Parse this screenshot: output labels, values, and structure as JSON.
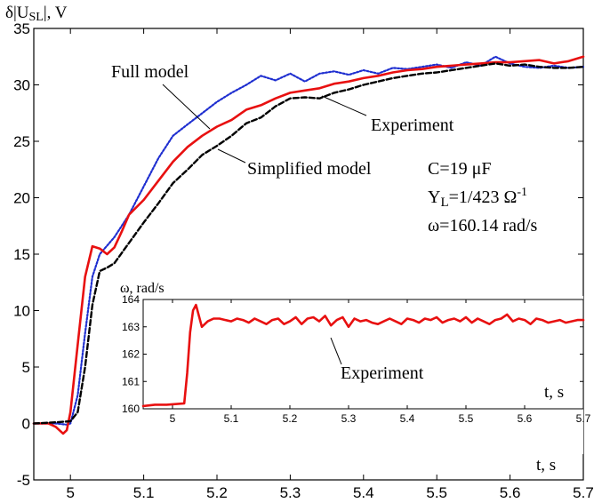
{
  "chart_data": [
    {
      "type": "line",
      "ylabel": "δ|U",
      "ylabel_sub": "SL",
      "ylabel_unit": "|, V",
      "xlabel": "t, s",
      "xlim": [
        4.95,
        5.7
      ],
      "ylim": [
        -5,
        35
      ],
      "x_ticks": [
        "5",
        "5.1",
        "5.2",
        "5.3",
        "5.4",
        "5.5",
        "5.6",
        "5.7"
      ],
      "y_ticks": [
        "-5",
        "0",
        "5",
        "10",
        "15",
        "20",
        "25",
        "30",
        "35"
      ],
      "grid": false,
      "annotations": {
        "full_model": "Full model",
        "experiment": "Experiment",
        "simplified_model": "Simplified model",
        "param_c": "C=19 μF",
        "param_y_main": "Y",
        "param_y_sub": "L",
        "param_y_value": "=1/423 Ω",
        "param_y_sup": "-1",
        "param_omega": "ω=160.14 rad/s"
      },
      "series": [
        {
          "role": "full-model",
          "color": "#1f2fd0",
          "style": "dotted",
          "x": [
            4.95,
            4.98,
            4.995,
            5.0,
            5.01,
            5.02,
            5.03,
            5.04,
            5.06,
            5.08,
            5.1,
            5.12,
            5.14,
            5.16,
            5.18,
            5.2,
            5.22,
            5.24,
            5.26,
            5.28,
            5.3,
            5.32,
            5.34,
            5.36,
            5.38,
            5.4,
            5.42,
            5.44,
            5.46,
            5.48,
            5.5,
            5.52,
            5.54,
            5.56,
            5.58,
            5.6,
            5.62,
            5.64,
            5.66,
            5.68,
            5.7
          ],
          "y": [
            0,
            0,
            -0.1,
            0,
            2.5,
            8,
            13,
            15,
            16.5,
            18.5,
            21,
            23.5,
            25.5,
            26.5,
            27.5,
            28.5,
            29.3,
            30,
            30.8,
            30.4,
            31,
            30.3,
            31,
            31.2,
            30.9,
            31.3,
            31,
            31.5,
            31.4,
            31.6,
            31.8,
            31.5,
            32,
            31.7,
            32.5,
            31.9,
            31.6,
            31.5,
            31.7,
            31.5,
            31.6
          ]
        },
        {
          "role": "experiment",
          "color": "#e81010",
          "style": "solid",
          "x": [
            4.95,
            4.97,
            4.98,
            4.99,
            4.995,
            5.0,
            5.01,
            5.02,
            5.03,
            5.04,
            5.05,
            5.06,
            5.07,
            5.08,
            5.1,
            5.12,
            5.14,
            5.16,
            5.18,
            5.2,
            5.22,
            5.24,
            5.26,
            5.28,
            5.3,
            5.32,
            5.34,
            5.36,
            5.38,
            5.4,
            5.42,
            5.44,
            5.46,
            5.48,
            5.5,
            5.52,
            5.54,
            5.56,
            5.58,
            5.6,
            5.62,
            5.64,
            5.66,
            5.68,
            5.7
          ],
          "y": [
            0,
            0,
            -0.3,
            -0.9,
            -0.6,
            1,
            7,
            13,
            15.7,
            15.5,
            15,
            15.6,
            17,
            18.5,
            19.8,
            21.5,
            23.2,
            24.5,
            25.5,
            26.3,
            26.9,
            27.8,
            28.2,
            28.8,
            29.3,
            29.5,
            29.7,
            30.1,
            30.3,
            30.6,
            30.8,
            31.1,
            31.3,
            31.4,
            31.6,
            31.7,
            31.8,
            31.9,
            32,
            32,
            32.1,
            32.2,
            31.9,
            32.1,
            32.5
          ]
        },
        {
          "role": "simplified-model",
          "color": "#000000",
          "style": "dashed",
          "x": [
            4.95,
            4.98,
            5.0,
            5.01,
            5.02,
            5.03,
            5.04,
            5.05,
            5.06,
            5.08,
            5.1,
            5.12,
            5.14,
            5.16,
            5.18,
            5.2,
            5.22,
            5.24,
            5.26,
            5.28,
            5.3,
            5.32,
            5.34,
            5.36,
            5.38,
            5.4,
            5.42,
            5.44,
            5.46,
            5.48,
            5.5,
            5.52,
            5.54,
            5.56,
            5.58,
            5.6,
            5.62,
            5.64,
            5.66,
            5.68,
            5.7
          ],
          "y": [
            0,
            0.1,
            0.2,
            1,
            5,
            10.5,
            13.5,
            13.8,
            14.2,
            16,
            17.8,
            19.5,
            21.3,
            22.5,
            23.8,
            24.6,
            25.5,
            26.6,
            27.1,
            28.1,
            28.8,
            28.9,
            28.8,
            29.3,
            29.6,
            30,
            30.3,
            30.6,
            30.8,
            31,
            31.1,
            31.3,
            31.5,
            31.7,
            31.9,
            31.7,
            31.8,
            31.6,
            31.5,
            31.5,
            31.6
          ]
        }
      ]
    },
    {
      "type": "line",
      "ylabel": "ω, rad/s",
      "xlabel": "t, s",
      "xlim": [
        4.95,
        5.7
      ],
      "ylim": [
        160,
        164
      ],
      "x_ticks": [
        "5",
        "5.1",
        "5.2",
        "5.3",
        "5.4",
        "5.5",
        "5.6",
        "5.7"
      ],
      "y_ticks": [
        "160",
        "161",
        "162",
        "163",
        "164"
      ],
      "grid": false,
      "annotations": {
        "experiment": "Experiment"
      },
      "series": [
        {
          "role": "experiment",
          "color": "#e81010",
          "style": "solid",
          "x": [
            4.95,
            4.97,
            4.99,
            5.02,
            5.025,
            5.03,
            5.035,
            5.04,
            5.045,
            5.05,
            5.06,
            5.07,
            5.08,
            5.09,
            5.1,
            5.11,
            5.12,
            5.13,
            5.14,
            5.15,
            5.16,
            5.17,
            5.18,
            5.19,
            5.2,
            5.21,
            5.22,
            5.23,
            5.24,
            5.25,
            5.26,
            5.27,
            5.28,
            5.29,
            5.3,
            5.31,
            5.32,
            5.33,
            5.34,
            5.35,
            5.36,
            5.37,
            5.38,
            5.39,
            5.4,
            5.41,
            5.42,
            5.43,
            5.44,
            5.45,
            5.46,
            5.47,
            5.48,
            5.49,
            5.5,
            5.51,
            5.52,
            5.53,
            5.54,
            5.55,
            5.56,
            5.57,
            5.58,
            5.59,
            5.6,
            5.61,
            5.62,
            5.63,
            5.64,
            5.65,
            5.66,
            5.67,
            5.68,
            5.69,
            5.7
          ],
          "y": [
            160.1,
            160.15,
            160.15,
            160.2,
            161.3,
            162.8,
            163.6,
            163.8,
            163.4,
            163.0,
            163.2,
            163.3,
            163.3,
            163.25,
            163.2,
            163.3,
            163.25,
            163.15,
            163.3,
            163.2,
            163.1,
            163.25,
            163.3,
            163.1,
            163.2,
            163.35,
            163.1,
            163.3,
            163.35,
            163.2,
            163.4,
            163.05,
            163.25,
            163.35,
            163.0,
            163.3,
            163.2,
            163.25,
            163.15,
            163.1,
            163.2,
            163.3,
            163.2,
            163.1,
            163.3,
            163.25,
            163.15,
            163.3,
            163.25,
            163.35,
            163.15,
            163.25,
            163.3,
            163.2,
            163.35,
            163.15,
            163.3,
            163.2,
            163.1,
            163.25,
            163.3,
            163.45,
            163.2,
            163.3,
            163.25,
            163.1,
            163.3,
            163.25,
            163.15,
            163.2,
            163.25,
            163.15,
            163.2,
            163.25,
            163.25
          ]
        }
      ]
    }
  ]
}
